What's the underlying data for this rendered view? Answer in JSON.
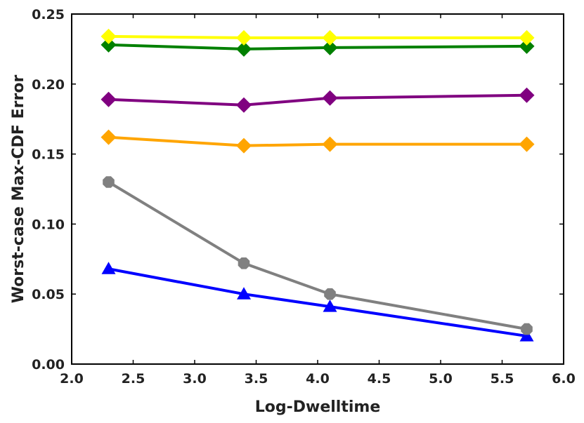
{
  "chart_data": {
    "type": "line",
    "title": "",
    "xlabel": "Log-Dwelltime",
    "ylabel": "Worst-case Max-CDF Error",
    "xlim": [
      2.0,
      6.0
    ],
    "ylim": [
      0.0,
      0.25
    ],
    "grid": false,
    "xticks": [
      "2.0",
      "2.5",
      "3.0",
      "3.5",
      "4.0",
      "4.5",
      "5.0",
      "5.5",
      "6.0"
    ],
    "yticks": [
      "0.00",
      "0.05",
      "0.10",
      "0.15",
      "0.20",
      "0.25"
    ],
    "x": [
      2.3,
      3.4,
      4.1,
      5.7
    ],
    "series": [
      {
        "name": "yellow",
        "color": "#ffff00",
        "marker": "diamond",
        "values": [
          0.234,
          0.233,
          0.233,
          0.233
        ]
      },
      {
        "name": "green",
        "color": "#008000",
        "marker": "diamond",
        "values": [
          0.228,
          0.225,
          0.226,
          0.227
        ]
      },
      {
        "name": "purple",
        "color": "#800080",
        "marker": "diamond",
        "values": [
          0.189,
          0.185,
          0.19,
          0.192
        ]
      },
      {
        "name": "orange",
        "color": "#ffa500",
        "marker": "diamond",
        "values": [
          0.162,
          0.156,
          0.157,
          0.157
        ]
      },
      {
        "name": "gray",
        "color": "#808080",
        "marker": "octagon",
        "values": [
          0.13,
          0.072,
          0.05,
          0.025
        ]
      },
      {
        "name": "blue",
        "color": "#0000ff",
        "marker": "triangle",
        "values": [
          0.068,
          0.05,
          0.041,
          0.02
        ]
      }
    ]
  }
}
